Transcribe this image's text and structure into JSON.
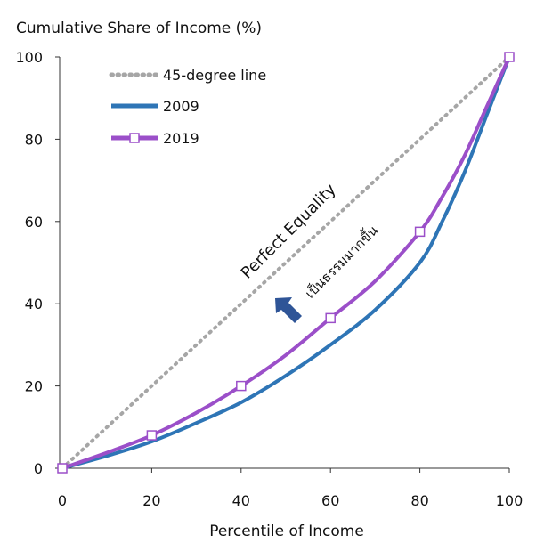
{
  "chart_data": {
    "type": "line",
    "title": "",
    "ylabel": "Cumulative Share of Income (%)",
    "xlabel": "Percentile of Income",
    "xlim": [
      0,
      100
    ],
    "ylim": [
      0,
      100
    ],
    "x_ticks": [
      0,
      20,
      40,
      60,
      80,
      100
    ],
    "y_ticks": [
      0,
      20,
      40,
      60,
      80,
      100
    ],
    "grid": false,
    "legend_position": "top-left",
    "series": [
      {
        "name": "45-degree line",
        "style": "dotted",
        "color": "#a6a6a6",
        "x": [
          0,
          100
        ],
        "y": [
          0,
          100
        ]
      },
      {
        "name": "2009",
        "style": "solid",
        "color": "#2e75b6",
        "x": [
          0,
          10,
          20,
          30,
          40,
          50,
          60,
          70,
          80,
          85,
          90,
          95,
          100
        ],
        "y": [
          0,
          3,
          6.5,
          11,
          16,
          22.5,
          30,
          38.5,
          50,
          60,
          72,
          86,
          100
        ]
      },
      {
        "name": "2019",
        "style": "solid-markers",
        "color": "#9b4fc9",
        "x": [
          0,
          10,
          20,
          30,
          40,
          50,
          60,
          70,
          80,
          85,
          90,
          95,
          100
        ],
        "y": [
          0,
          3.8,
          8,
          13.5,
          20,
          27.5,
          36.5,
          45.5,
          57.5,
          66,
          76,
          88,
          100
        ],
        "marker_x": [
          0,
          20,
          40,
          60,
          80,
          100
        ],
        "marker_y": [
          0,
          8,
          20,
          36.5,
          57.5,
          100
        ]
      }
    ],
    "annotations": {
      "perfect_equality": "Perfect Equality",
      "more_equal": "เป็นธรรมมากขึ้น"
    },
    "arrow_color": "#2f5597"
  }
}
